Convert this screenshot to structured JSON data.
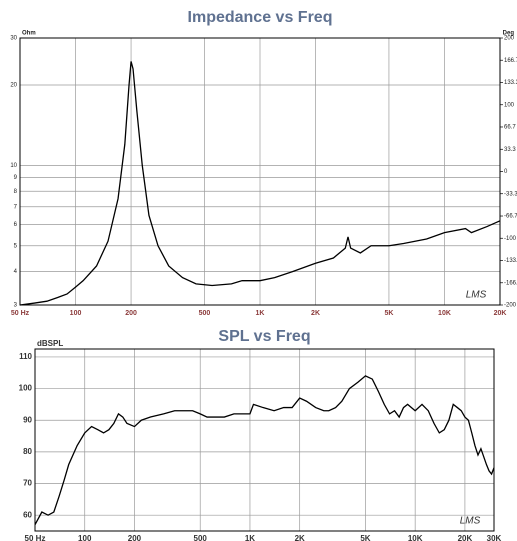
{
  "chart_data": [
    {
      "type": "line",
      "title": "Impedance vs Freq",
      "y_label": "Ohm",
      "y2_label": "Deg",
      "watermark": "LMS",
      "x": [
        50,
        60,
        70,
        80,
        90,
        100,
        110,
        130,
        150,
        170,
        185,
        195,
        200,
        205,
        215,
        230,
        250,
        280,
        320,
        380,
        450,
        550,
        700,
        800,
        1000,
        1200,
        1500,
        2000,
        2500,
        2900,
        3000,
        3100,
        3500,
        4000,
        5000,
        6000,
        8000,
        10000,
        13000,
        14000,
        17000,
        20000
      ],
      "values": [
        3.0,
        3.05,
        3.1,
        3.2,
        3.3,
        3.5,
        3.7,
        4.2,
        5.2,
        7.5,
        12,
        20,
        24.5,
        23,
        16,
        10,
        6.5,
        5.0,
        4.2,
        3.8,
        3.6,
        3.55,
        3.6,
        3.7,
        3.7,
        3.8,
        4.0,
        4.3,
        4.5,
        4.9,
        5.4,
        4.9,
        4.7,
        5.0,
        5.0,
        5.1,
        5.3,
        5.6,
        5.8,
        5.6,
        5.9,
        6.2
      ],
      "color": "#000000",
      "xlog": true,
      "ylog": true,
      "grid": true,
      "xlim": [
        50,
        20000
      ],
      "ylim": [
        3,
        30
      ],
      "y2lim": [
        -200,
        200
      ],
      "xticks": [
        {
          "value": 50,
          "label": "50 Hz"
        },
        100,
        200,
        500,
        {
          "value": 1000,
          "label": "1K"
        },
        {
          "value": 2000,
          "label": "2K"
        },
        {
          "value": 5000,
          "label": "5K"
        },
        {
          "value": 10000,
          "label": "10K"
        },
        {
          "value": 20000,
          "label": "20K"
        }
      ],
      "yticks": [
        3,
        4,
        5,
        6,
        7,
        8,
        9,
        10,
        20,
        30
      ],
      "y2ticks": [
        -200,
        -166.7,
        -133.3,
        -100,
        -66.7,
        -33.3,
        0,
        33.3,
        66.7,
        100,
        133.3,
        166.7,
        200
      ]
    },
    {
      "type": "line",
      "title": "SPL vs Freq",
      "y_label": "dBSPL",
      "watermark": "LMS",
      "x": [
        50,
        55,
        60,
        65,
        70,
        75,
        80,
        90,
        100,
        110,
        120,
        130,
        140,
        150,
        160,
        170,
        180,
        200,
        220,
        250,
        300,
        350,
        400,
        450,
        500,
        550,
        600,
        700,
        800,
        900,
        1000,
        1050,
        1200,
        1400,
        1600,
        1800,
        2000,
        2200,
        2500,
        2800,
        3000,
        3300,
        3600,
        4000,
        4500,
        5000,
        5500,
        6000,
        6500,
        7000,
        7500,
        8000,
        8500,
        9000,
        10000,
        11000,
        12000,
        13000,
        14000,
        15000,
        16000,
        17000,
        18000,
        19000,
        20000,
        21000,
        22000,
        23000,
        24000,
        25000,
        27000,
        28000,
        29000,
        30000
      ],
      "values": [
        57,
        61,
        60,
        61,
        66,
        71,
        76,
        82,
        86,
        88,
        87,
        86,
        87,
        89,
        92,
        91,
        89,
        88,
        90,
        91,
        92,
        93,
        93,
        93,
        92,
        91,
        91,
        91,
        92,
        92,
        92,
        95,
        94,
        93,
        94,
        94,
        97,
        96,
        94,
        93,
        93,
        94,
        96,
        100,
        102,
        104,
        103,
        99,
        95,
        92,
        93,
        91,
        94,
        95,
        93,
        95,
        93,
        89,
        86,
        87,
        90,
        95,
        94,
        93,
        91,
        90,
        86,
        82,
        79,
        81,
        76,
        74,
        73,
        75
      ],
      "color": "#000000",
      "xlog": true,
      "ylog": false,
      "grid": true,
      "xlim": [
        50,
        30000
      ],
      "ylim": [
        55,
        112.5
      ],
      "xticks": [
        {
          "value": 50,
          "label": "50 Hz"
        },
        100,
        200,
        500,
        {
          "value": 1000,
          "label": "1K"
        },
        {
          "value": 2000,
          "label": "2K"
        },
        {
          "value": 5000,
          "label": "5K"
        },
        {
          "value": 10000,
          "label": "10K"
        },
        {
          "value": 20000,
          "label": "20K"
        },
        {
          "value": 30000,
          "label": "30K"
        }
      ],
      "yticks": [
        60,
        70,
        80,
        90,
        100,
        110
      ]
    }
  ]
}
